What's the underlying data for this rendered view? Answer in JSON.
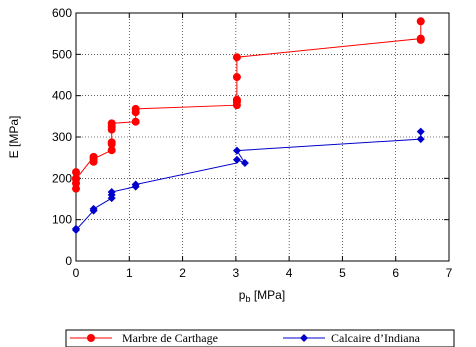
{
  "chart_data": {
    "type": "line",
    "xlabel_main": "p",
    "xlabel_sub": "b",
    "xlabel_unit": " [MPa]",
    "ylabel": "E [MPa]",
    "xlim": [
      0,
      7
    ],
    "ylim": [
      0,
      600
    ],
    "x_ticks": [
      "0",
      "1",
      "2",
      "3",
      "4",
      "5",
      "6",
      "7"
    ],
    "y_ticks": [
      "0",
      "100",
      "200",
      "300",
      "400",
      "500",
      "600"
    ],
    "grid": true,
    "legend_position": "bottom",
    "series": [
      {
        "name": "Marbre de Carthage",
        "color": "#ff0000",
        "marker": "circle",
        "points": [
          [
            0,
            175
          ],
          [
            0,
            188
          ],
          [
            0,
            198
          ],
          [
            0,
            200
          ],
          [
            0,
            215
          ],
          [
            0.33,
            240
          ],
          [
            0.33,
            247
          ],
          [
            0.33,
            252
          ],
          [
            0.67,
            268
          ],
          [
            0.67,
            283
          ],
          [
            0.67,
            287
          ],
          [
            0.67,
            318
          ],
          [
            0.67,
            325
          ],
          [
            0.67,
            333
          ],
          [
            1.12,
            337
          ],
          [
            1.12,
            360
          ],
          [
            1.12,
            368
          ],
          [
            3.02,
            377
          ],
          [
            3.02,
            385
          ],
          [
            3.02,
            390
          ],
          [
            3.02,
            445
          ],
          [
            3.02,
            493
          ],
          [
            6.47,
            535
          ],
          [
            6.47,
            538
          ],
          [
            6.47,
            580
          ]
        ],
        "line": [
          [
            0,
            215
          ],
          [
            0,
            175
          ],
          [
            0,
            198
          ],
          [
            0.33,
            252
          ],
          [
            0.33,
            240
          ],
          [
            0.33,
            247
          ],
          [
            0.67,
            268
          ],
          [
            0.67,
            333
          ],
          [
            1.12,
            337
          ],
          [
            1.12,
            368
          ],
          [
            3.02,
            377
          ],
          [
            3.02,
            493
          ],
          [
            6.47,
            538
          ],
          [
            6.47,
            535
          ],
          [
            6.47,
            580
          ]
        ]
      },
      {
        "name": "Calcaire d’Indiana",
        "color": "#0000cc",
        "marker": "diamond",
        "points": [
          [
            0,
            75
          ],
          [
            0,
            78
          ],
          [
            0.33,
            122
          ],
          [
            0.33,
            126
          ],
          [
            0.67,
            152
          ],
          [
            0.67,
            160
          ],
          [
            0.67,
            167
          ],
          [
            1.12,
            180
          ],
          [
            1.12,
            185
          ],
          [
            3.02,
            245
          ],
          [
            3.02,
            267
          ],
          [
            3.17,
            237
          ],
          [
            6.47,
            295
          ],
          [
            6.47,
            313
          ]
        ],
        "line": [
          [
            0,
            78
          ],
          [
            0,
            75
          ],
          [
            0.33,
            122
          ],
          [
            0.33,
            126
          ],
          [
            0.67,
            152
          ],
          [
            0.67,
            167
          ],
          [
            1.12,
            180
          ],
          [
            1.12,
            185
          ],
          [
            3.02,
            237
          ],
          [
            3.02,
            245
          ],
          [
            3.17,
            237
          ],
          [
            3.02,
            267
          ],
          [
            6.47,
            295
          ],
          [
            6.47,
            313
          ]
        ]
      }
    ]
  }
}
